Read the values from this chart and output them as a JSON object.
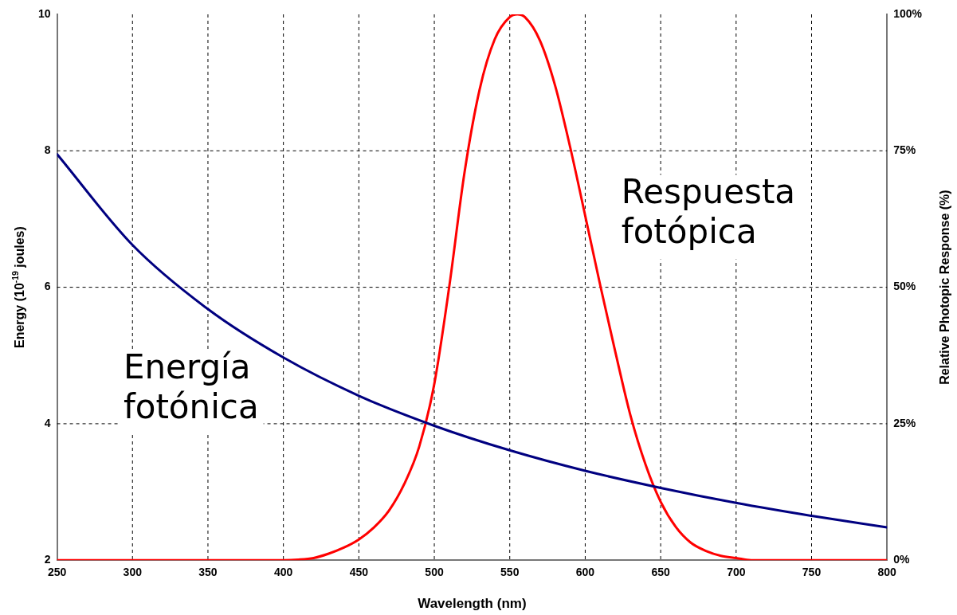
{
  "chart_data": {
    "type": "line",
    "xlabel": "Wavelength (nm)",
    "ylabel": "Energy (10$^{-19}$ joules)",
    "y2label": "Relative Photopic Response (%)",
    "xlim": [
      250,
      800
    ],
    "xticks": [
      250,
      300,
      350,
      400,
      450,
      500,
      550,
      600,
      650,
      700,
      750,
      800
    ],
    "ylim": [
      2,
      10
    ],
    "yticks": [
      2,
      4,
      6,
      8,
      10
    ],
    "y2lim": [
      0,
      100
    ],
    "y2ticks": [
      {
        "value": 0,
        "label": "0%"
      },
      {
        "value": 25,
        "label": "25%"
      },
      {
        "value": 50,
        "label": "50%"
      },
      {
        "value": 75,
        "label": "75%"
      },
      {
        "value": 100,
        "label": "100%"
      }
    ],
    "grid": true,
    "line_style": "solid",
    "marker": "none",
    "series": [
      {
        "name": "Energía fotónica",
        "color": "#000080",
        "x": [
          250,
          300,
          350,
          400,
          450,
          500,
          550,
          600,
          650,
          700,
          750,
          800
        ],
        "values": [
          7.95,
          6.62,
          5.68,
          4.97,
          4.41,
          3.97,
          3.61,
          3.31,
          3.06,
          2.84,
          2.65,
          2.48
        ]
      },
      {
        "name": "Respuesta fotópica",
        "color": "#ff0000",
        "axis": "y2",
        "x": [
          250,
          400,
          410,
          420,
          430,
          440,
          450,
          460,
          470,
          480,
          490,
          500,
          510,
          520,
          530,
          540,
          550,
          555,
          560,
          570,
          580,
          590,
          600,
          610,
          620,
          630,
          640,
          650,
          660,
          670,
          680,
          690,
          700,
          710,
          800
        ],
        "values": [
          0,
          0,
          0.1,
          0.4,
          1.2,
          2.3,
          3.8,
          6,
          9.1,
          13.9,
          20.8,
          32.3,
          50.3,
          71,
          86.2,
          95.4,
          99.5,
          100,
          99.5,
          95.2,
          87,
          75.7,
          63.1,
          50.3,
          38.1,
          26.5,
          17.5,
          10.7,
          6.1,
          3.2,
          1.7,
          0.8,
          0.4,
          0,
          0
        ]
      }
    ]
  }
}
